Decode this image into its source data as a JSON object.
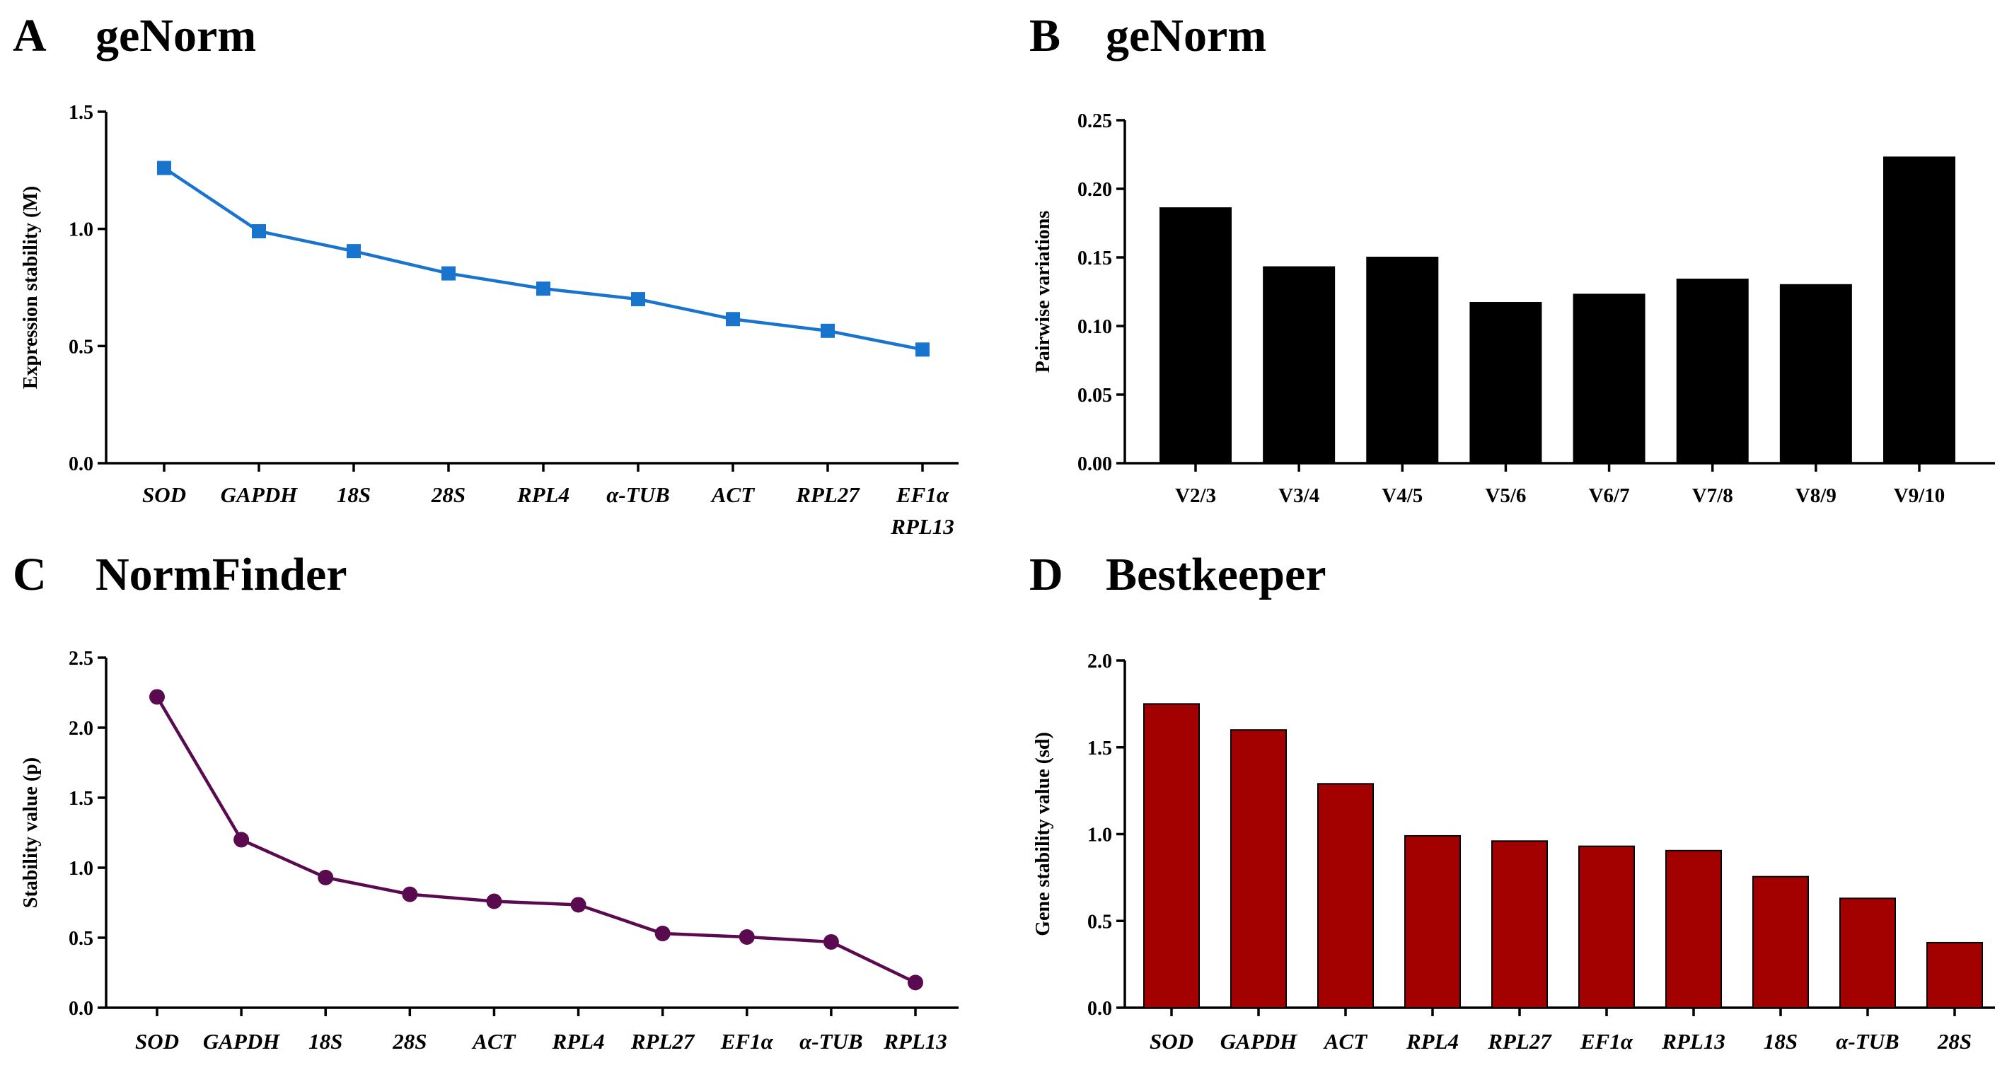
{
  "chart_data": [
    {
      "id": "A",
      "panel_letter": "A",
      "title": "geNorm",
      "type": "line",
      "marker": "square",
      "color": "#1874cd",
      "categories": [
        "SOD",
        "GAPDH",
        "18S",
        "28S",
        "RPL4",
        "α-TUB",
        "ACT",
        "RPL27",
        "EF1α"
      ],
      "category_sublabels": [
        "",
        "",
        "",
        "",
        "",
        "",
        "",
        "",
        "RPL13"
      ],
      "values": [
        1.26,
        0.99,
        0.905,
        0.81,
        0.745,
        0.7,
        0.615,
        0.565,
        0.485
      ],
      "xlabel": "",
      "ylabel": "Expression stability (M)",
      "ylim": [
        0,
        1.5
      ],
      "yticks": [
        0,
        0.5,
        1.0,
        1.5
      ],
      "ytick_labels": [
        "0.0",
        "0.5",
        "1.0",
        "1.5"
      ],
      "grid": false
    },
    {
      "id": "B",
      "panel_letter": "B",
      "title": "geNorm",
      "type": "bar",
      "color": "#000000",
      "categories": [
        "V2/3",
        "V3/4",
        "V4/5",
        "V5/6",
        "V6/7",
        "V7/8",
        "V8/9",
        "V9/10"
      ],
      "values": [
        0.186,
        0.143,
        0.15,
        0.117,
        0.123,
        0.134,
        0.13,
        0.223
      ],
      "xlabel": "",
      "ylabel": "Pairwise variations",
      "ylim": [
        0,
        0.25
      ],
      "yticks": [
        0,
        0.05,
        0.1,
        0.15,
        0.2,
        0.25
      ],
      "ytick_labels": [
        "0.00",
        "0.05",
        "0.10",
        "0.15",
        "0.20",
        "0.25"
      ],
      "grid": false
    },
    {
      "id": "C",
      "panel_letter": "C",
      "title": "NormFinder",
      "type": "line",
      "marker": "circle",
      "color": "#5a0a4e",
      "categories": [
        "SOD",
        "GAPDH",
        "18S",
        "28S",
        "ACT",
        "RPL4",
        "RPL27",
        "EF1α",
        "α-TUB",
        "RPL13"
      ],
      "values": [
        2.22,
        1.2,
        0.93,
        0.81,
        0.76,
        0.735,
        0.53,
        0.505,
        0.47,
        0.18
      ],
      "xlabel": "",
      "ylabel": "Stability value (p)",
      "ylim": [
        0,
        2.5
      ],
      "yticks": [
        0,
        0.5,
        1.0,
        1.5,
        2.0,
        2.5
      ],
      "ytick_labels": [
        "0.0",
        "0.5",
        "1.0",
        "1.5",
        "2.0",
        "2.5"
      ],
      "grid": false
    },
    {
      "id": "D",
      "panel_letter": "D",
      "title": "Bestkeeper",
      "type": "bar",
      "color": "#a30000",
      "categories": [
        "SOD",
        "GAPDH",
        "ACT",
        "RPL4",
        "RPL27",
        "EF1α",
        "RPL13",
        "18S",
        "α-TUB",
        "28S"
      ],
      "values": [
        1.75,
        1.6,
        1.29,
        0.99,
        0.96,
        0.93,
        0.905,
        0.755,
        0.63,
        0.375
      ],
      "xlabel": "",
      "ylabel": "Gene stability value (sd)",
      "ylim": [
        0,
        2.0
      ],
      "yticks": [
        0,
        0.5,
        1.0,
        1.5,
        2.0
      ],
      "ytick_labels": [
        "0.0",
        "0.5",
        "1.0",
        "1.5",
        "2.0"
      ],
      "grid": false
    }
  ]
}
